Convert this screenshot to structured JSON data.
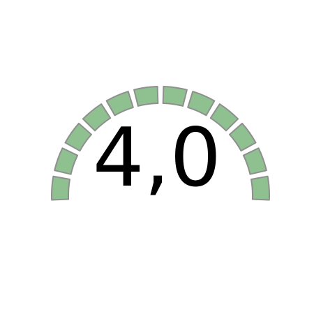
{
  "gauge": {
    "value_label": "4,0",
    "segments_total": 12,
    "segments_filled": 12,
    "colors": {
      "filled": "#8fc08f",
      "border": "#8f8f8f",
      "text": "#000000"
    }
  }
}
